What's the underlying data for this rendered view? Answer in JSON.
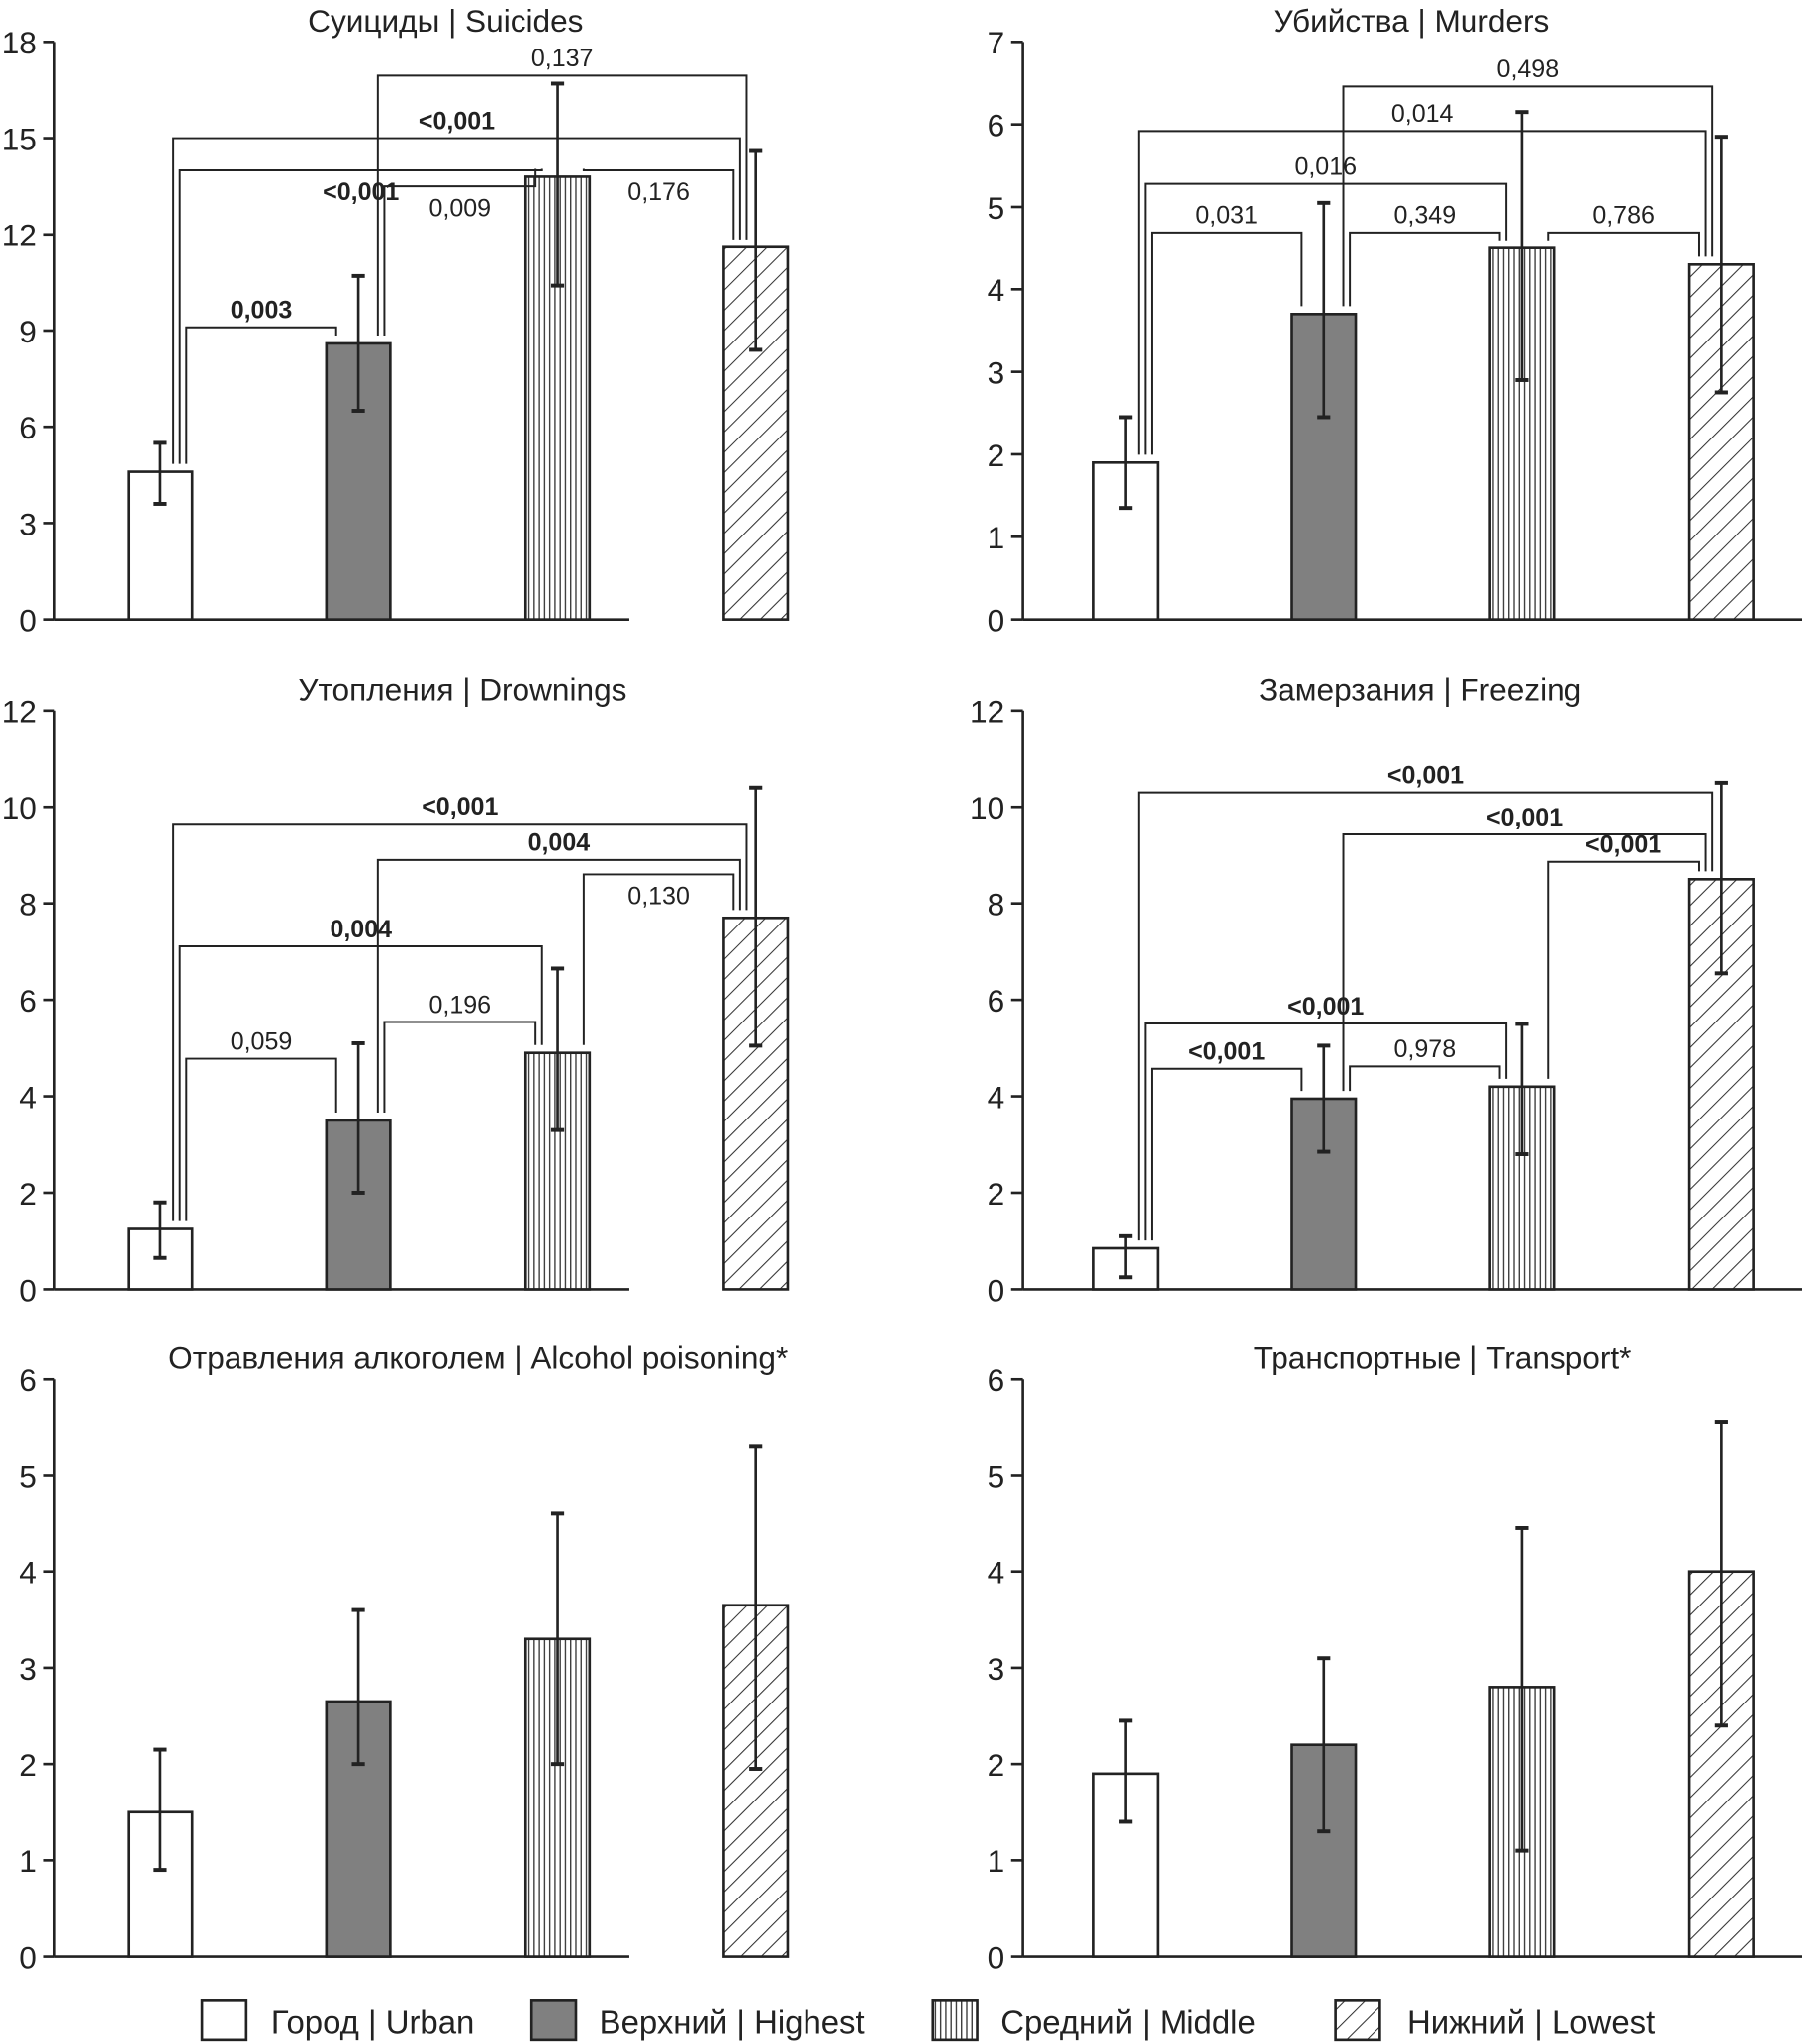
{
  "legend": [
    {
      "label": "Город | Urban",
      "fill": "white"
    },
    {
      "label": "Верхний | Highest",
      "fill": "gray"
    },
    {
      "label": "Средний | Middle",
      "fill": "vertical"
    },
    {
      "label": "Нижний | Lowest",
      "fill": "diagonal"
    }
  ],
  "colors": {
    "bar_gray": "#808080",
    "stroke": "#222222"
  },
  "chart_data": [
    {
      "type": "bar",
      "title": "Суициды | Suicides",
      "categories": [
        "Urban",
        "Highest",
        "Middle",
        "Lowest"
      ],
      "values": [
        4.6,
        8.6,
        13.8,
        11.6
      ],
      "err_low": [
        3.6,
        6.5,
        10.4,
        8.4
      ],
      "err_high": [
        5.5,
        10.7,
        16.7,
        14.6
      ],
      "ylim": [
        0,
        18
      ],
      "yticks": [
        0,
        3,
        6,
        9,
        12,
        15,
        18
      ],
      "brackets": [
        {
          "from": 0,
          "to": 1,
          "level": 9.1,
          "label": "0,003",
          "bold": true,
          "pos": "above"
        },
        {
          "from": 1,
          "to": 2,
          "level": 13.5,
          "label": "0,009",
          "bold": false,
          "pos": "below"
        },
        {
          "from": 0,
          "to": 2,
          "level": 14.0,
          "label": "<0,001",
          "bold": true,
          "pos": "below"
        },
        {
          "from": 2,
          "to": 3,
          "level": 14.0,
          "label": "0,176",
          "bold": false,
          "pos": "below"
        },
        {
          "from": 0,
          "to": 3,
          "level": 15.0,
          "label": "<0,001",
          "bold": true,
          "pos": "above"
        },
        {
          "from": 1,
          "to": 3,
          "level": 16.95,
          "label": "0,137",
          "bold": false,
          "pos": "above"
        }
      ]
    },
    {
      "type": "bar",
      "title": "Убийства | Murders",
      "categories": [
        "Urban",
        "Highest",
        "Middle",
        "Lowest"
      ],
      "values": [
        1.9,
        3.7,
        4.5,
        4.3
      ],
      "err_low": [
        1.35,
        2.45,
        2.9,
        2.75
      ],
      "err_high": [
        2.45,
        5.05,
        6.15,
        5.85
      ],
      "ylim": [
        0,
        7
      ],
      "yticks": [
        0,
        1,
        2,
        3,
        4,
        5,
        6,
        7
      ],
      "brackets": [
        {
          "from": 0,
          "to": 1,
          "level": 4.69,
          "label": "0,031",
          "bold": false,
          "pos": "above"
        },
        {
          "from": 1,
          "to": 2,
          "level": 4.69,
          "label": "0,349",
          "bold": false,
          "pos": "above"
        },
        {
          "from": 2,
          "to": 3,
          "level": 4.69,
          "label": "0,786",
          "bold": false,
          "pos": "above"
        },
        {
          "from": 0,
          "to": 2,
          "level": 5.28,
          "label": "0,016",
          "bold": false,
          "pos": "above"
        },
        {
          "from": 0,
          "to": 3,
          "level": 5.92,
          "label": "0,014",
          "bold": false,
          "pos": "above"
        },
        {
          "from": 1,
          "to": 3,
          "level": 6.46,
          "label": "0,498",
          "bold": false,
          "pos": "above"
        }
      ]
    },
    {
      "type": "bar",
      "title": "Утопления | Drownings",
      "categories": [
        "Urban",
        "Highest",
        "Middle",
        "Lowest"
      ],
      "values": [
        1.25,
        3.5,
        4.9,
        7.7
      ],
      "err_low": [
        0.65,
        2.0,
        3.3,
        5.05
      ],
      "err_high": [
        1.8,
        5.1,
        6.65,
        10.4
      ],
      "ylim": [
        0,
        12
      ],
      "yticks": [
        0,
        2,
        4,
        6,
        8,
        10,
        12
      ],
      "brackets": [
        {
          "from": 0,
          "to": 1,
          "level": 4.78,
          "label": "0,059",
          "bold": false,
          "pos": "above"
        },
        {
          "from": 1,
          "to": 2,
          "level": 5.54,
          "label": "0,196",
          "bold": false,
          "pos": "above"
        },
        {
          "from": 0,
          "to": 2,
          "level": 7.11,
          "label": "0,004",
          "bold": true,
          "pos": "above"
        },
        {
          "from": 2,
          "to": 3,
          "level": 8.6,
          "label": "0,130",
          "bold": false,
          "pos": "below"
        },
        {
          "from": 1,
          "to": 3,
          "level": 8.9,
          "label": "0,004",
          "bold": true,
          "pos": "above"
        },
        {
          "from": 0,
          "to": 3,
          "level": 9.65,
          "label": "<0,001",
          "bold": true,
          "pos": "above"
        }
      ]
    },
    {
      "type": "bar",
      "title": "Замерзания | Freezing",
      "categories": [
        "Urban",
        "Highest",
        "Middle",
        "Lowest"
      ],
      "values": [
        0.85,
        3.95,
        4.2,
        8.5
      ],
      "err_low": [
        0.25,
        2.85,
        2.8,
        6.55
      ],
      "err_high": [
        1.1,
        5.05,
        5.5,
        10.5
      ],
      "ylim": [
        0,
        12
      ],
      "yticks": [
        0,
        2,
        4,
        6,
        8,
        10,
        12
      ],
      "brackets": [
        {
          "from": 0,
          "to": 1,
          "level": 4.57,
          "label": "<0,001",
          "bold": true,
          "pos": "above"
        },
        {
          "from": 1,
          "to": 2,
          "level": 4.62,
          "label": "0,978",
          "bold": false,
          "pos": "above"
        },
        {
          "from": 0,
          "to": 2,
          "level": 5.51,
          "label": "<0,001",
          "bold": true,
          "pos": "above"
        },
        {
          "from": 2,
          "to": 3,
          "level": 8.86,
          "label": "<0,001",
          "bold": true,
          "pos": "above"
        },
        {
          "from": 1,
          "to": 3,
          "level": 9.43,
          "label": "<0,001",
          "bold": true,
          "pos": "above"
        },
        {
          "from": 0,
          "to": 3,
          "level": 10.3,
          "label": "<0,001",
          "bold": true,
          "pos": "above"
        }
      ]
    },
    {
      "type": "bar",
      "title": "Отравления алкоголем | Alcohol poisoning*",
      "categories": [
        "Urban",
        "Highest",
        "Middle",
        "Lowest"
      ],
      "values": [
        1.5,
        2.65,
        3.3,
        3.65
      ],
      "err_low": [
        0.9,
        2.0,
        2.0,
        1.95
      ],
      "err_high": [
        2.15,
        3.6,
        4.6,
        5.3
      ],
      "ylim": [
        0,
        6
      ],
      "yticks": [
        0,
        1,
        2,
        3,
        4,
        5,
        6
      ],
      "brackets": []
    },
    {
      "type": "bar",
      "title": "Транспортные | Transport*",
      "categories": [
        "Urban",
        "Highest",
        "Middle",
        "Lowest"
      ],
      "values": [
        1.9,
        2.2,
        2.8,
        4.0
      ],
      "err_low": [
        1.4,
        1.3,
        1.1,
        2.4
      ],
      "err_high": [
        2.45,
        3.1,
        4.45,
        5.55
      ],
      "ylim": [
        0,
        6
      ],
      "yticks": [
        0,
        1,
        2,
        3,
        4,
        5,
        6
      ],
      "brackets": []
    }
  ]
}
